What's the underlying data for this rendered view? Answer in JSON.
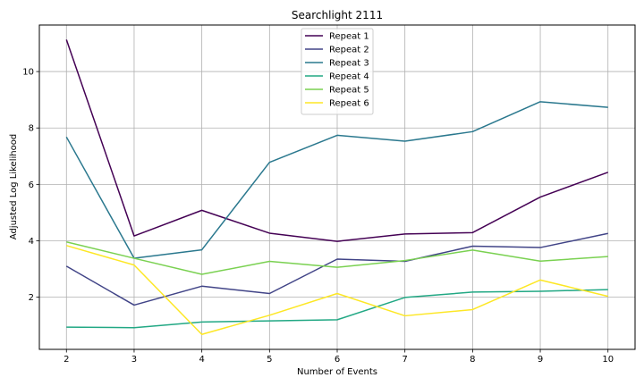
{
  "chart_data": {
    "type": "line",
    "title": "Searchlight 2111",
    "xlabel": "Number of Events",
    "ylabel": "Adjusted Log Likelihood",
    "x": [
      2,
      3,
      4,
      5,
      6,
      7,
      8,
      9,
      10
    ],
    "xticks": [
      2,
      3,
      4,
      5,
      6,
      7,
      8,
      9,
      10
    ],
    "yticks": [
      2,
      4,
      6,
      8,
      10
    ],
    "xlim": [
      1.6,
      10.4
    ],
    "ylim": [
      0.15,
      11.65
    ],
    "grid": true,
    "legend_position": "top-center",
    "series": [
      {
        "name": "Repeat 1",
        "color": "#440154",
        "values": [
          11.13,
          4.17,
          5.08,
          4.27,
          3.98,
          4.24,
          4.29,
          5.55,
          6.43
        ]
      },
      {
        "name": "Repeat 2",
        "color": "#414487",
        "values": [
          3.1,
          1.72,
          2.39,
          2.13,
          3.35,
          3.27,
          3.81,
          3.76,
          4.26
        ]
      },
      {
        "name": "Repeat 3",
        "color": "#2a788e",
        "values": [
          7.68,
          3.38,
          3.68,
          6.78,
          7.74,
          7.53,
          7.87,
          8.93,
          8.73
        ]
      },
      {
        "name": "Repeat 4",
        "color": "#22a884",
        "values": [
          0.94,
          0.92,
          1.12,
          1.16,
          1.2,
          1.99,
          2.18,
          2.21,
          2.27
        ]
      },
      {
        "name": "Repeat 5",
        "color": "#7ad151",
        "values": [
          3.96,
          3.38,
          2.81,
          3.27,
          3.06,
          3.3,
          3.67,
          3.28,
          3.44
        ]
      },
      {
        "name": "Repeat 6",
        "color": "#fde725",
        "values": [
          3.83,
          3.14,
          0.68,
          1.36,
          2.13,
          1.34,
          1.56,
          2.61,
          2.03
        ]
      }
    ]
  }
}
